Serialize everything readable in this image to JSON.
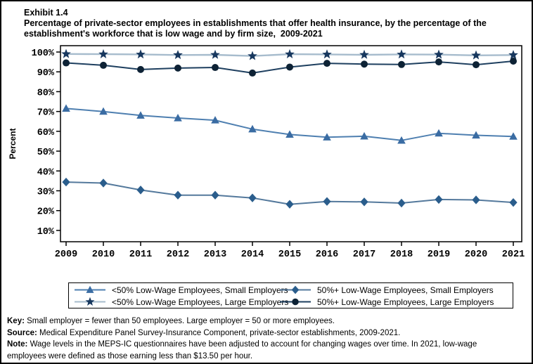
{
  "window": {
    "background": "#ffffff",
    "border_color": "#000000"
  },
  "header": {
    "exhibit_label": "Exhibit 1.4",
    "title_line1": "Percentage of private-sector employees in establishments that offer health insurance, by the percentage of the",
    "title_line2": "establishment's workforce that is low wage and by firm size,  2009-2021"
  },
  "chart_data": {
    "type": "line",
    "title": "Percentage of private-sector employees in establishments that offer health insurance, by the percentage of the establishment's workforce that is low wage and by firm size, 2009-2021",
    "xlabel": "",
    "ylabel": "Percent",
    "categories": [
      "2009",
      "2010",
      "2011",
      "2012",
      "2013",
      "2014",
      "2015",
      "2016",
      "2017",
      "2018",
      "2019",
      "2020",
      "2021"
    ],
    "y_ticks": [
      10,
      20,
      30,
      40,
      50,
      60,
      70,
      80,
      90,
      100
    ],
    "y_tick_labels": [
      "10%",
      "20%",
      "30%",
      "40%",
      "50%",
      "60%",
      "70%",
      "80%",
      "90%",
      "100%"
    ],
    "ylim": [
      4.3,
      103.2
    ],
    "grid": false,
    "legend_position": "bottom",
    "series": [
      {
        "name": "<50% Low-Wage Employees, Small Employers",
        "marker": "triangle",
        "marker_color": "#3a6ca3",
        "line_color": "#4e7fb0",
        "line_width": 2,
        "values": [
          71.5,
          70.0,
          68.0,
          66.7,
          65.6,
          61.1,
          58.4,
          57.0,
          57.5,
          55.4,
          59.0,
          58.0,
          57.4
        ]
      },
      {
        "name": "<50% Low-Wage Employees, Large Employers",
        "marker": "star",
        "marker_color": "#17375e",
        "line_color": "#a7bccd",
        "line_width": 2.4,
        "values": [
          99.0,
          98.9,
          98.8,
          98.5,
          98.6,
          98.0,
          98.9,
          98.8,
          98.6,
          98.8,
          98.7,
          98.3,
          98.5
        ]
      },
      {
        "name": "50%+ Low-Wage Employees, Small Employers",
        "marker": "diamond",
        "marker_color": "#2a5d8c",
        "line_color": "#54799c",
        "line_width": 2,
        "values": [
          34.4,
          33.9,
          30.4,
          27.8,
          27.8,
          26.4,
          23.2,
          24.6,
          24.4,
          23.8,
          25.6,
          25.4,
          24.1
        ]
      },
      {
        "name": "50%+ Low-Wage Employees, Large Employers",
        "marker": "circle",
        "marker_color": "#0d2235",
        "line_color": "#1e3f5f",
        "line_width": 2,
        "values": [
          94.5,
          93.3,
          91.2,
          91.9,
          92.2,
          89.4,
          92.4,
          94.3,
          93.9,
          93.7,
          95.0,
          93.6,
          95.4
        ]
      }
    ]
  },
  "footer": {
    "key_label": "Key:",
    "key_text": " Small employer = fewer than 50 employees. Large employer = 50 or more employees.",
    "source_label": "Source:",
    "source_text": " Medical Expenditure Panel Survey-Insurance Component, private-sector establishments, 2009-2021.",
    "note_label": "Note:",
    "note_text": " Wage levels in the MEPS-IC questionnaires have been adjusted to account for changing wages over time. In 2021, low-wage employees were defined as those earning less than $13.50 per hour."
  }
}
